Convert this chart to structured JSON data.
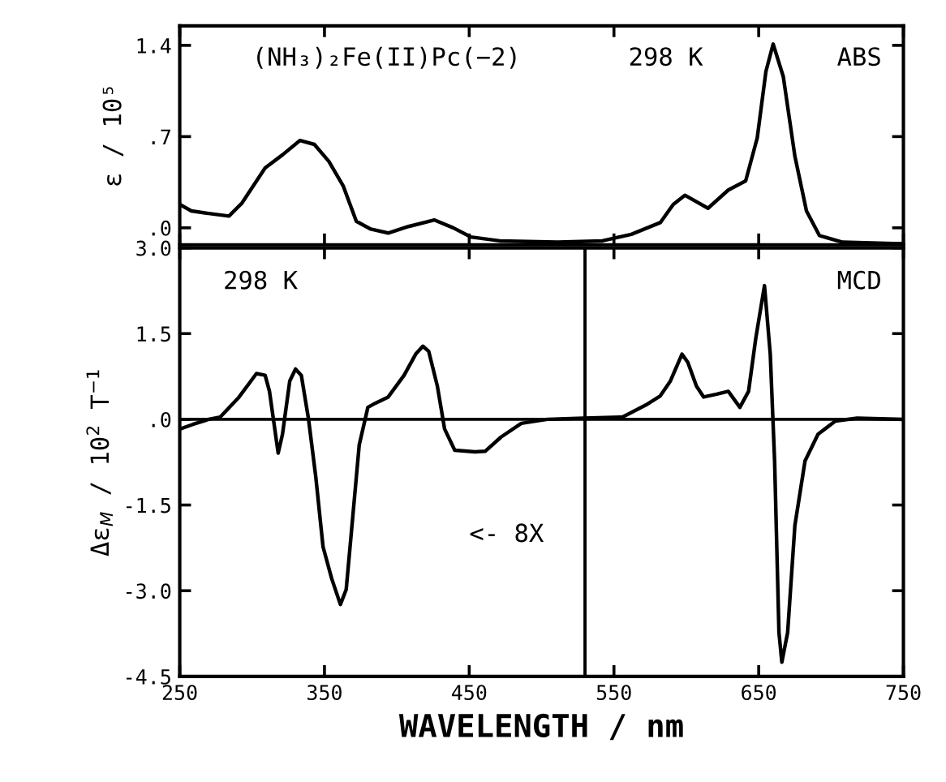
{
  "chart_data": [
    {
      "type": "line",
      "ylabel": "ε / 10⁵",
      "annotations": [
        "(NH₃)₂Fe(II)Pc(−2)",
        "298 K",
        "ABS"
      ],
      "xlim": [
        250,
        750
      ],
      "xticks": [
        250,
        350,
        450,
        550,
        650,
        750
      ],
      "ylim": [
        -0.13,
        1.55
      ],
      "yticks": [
        {
          "value": 0,
          "label": ".0"
        },
        {
          "value": 0.7,
          "label": ".7"
        },
        1.4
      ],
      "tick_labels": "y",
      "grid": false,
      "series": [
        {
          "color": "#000000",
          "x": [
            250,
            258,
            270,
            284,
            293,
            309,
            321,
            333,
            343,
            353,
            363,
            372,
            382,
            394,
            408,
            426,
            439,
            451,
            471,
            511,
            542,
            562,
            582,
            591,
            599,
            615,
            629,
            641,
            649,
            655,
            660,
            667,
            675,
            683,
            692,
            708,
            743,
            750
          ],
          "values": [
            0.18,
            0.13,
            0.11,
            0.09,
            0.19,
            0.46,
            0.56,
            0.67,
            0.64,
            0.51,
            0.32,
            0.05,
            -0.01,
            -0.04,
            0.01,
            0.06,
            0,
            -0.07,
            -0.1,
            -0.11,
            -0.1,
            -0.05,
            0.04,
            0.18,
            0.25,
            0.15,
            0.29,
            0.36,
            0.69,
            1.2,
            1.41,
            1.16,
            0.55,
            0.13,
            -0.06,
            -0.11,
            -0.12,
            -0.12
          ]
        }
      ]
    },
    {
      "type": "line",
      "xlabel": "WAVELENGTH / nm",
      "ylabel": "Δε$_{M}$ / 10$^{2}$ T$^{−1}$",
      "annotations": [
        "298 K",
        "MCD",
        "<- 8X"
      ],
      "xlim": [
        250,
        750
      ],
      "xticks": [
        250,
        350,
        450,
        550,
        650,
        750
      ],
      "ylim": [
        -4.5,
        3.0
      ],
      "yticks": [
        {
          "value": 3.0,
          "label": "3.0"
        },
        1.5,
        {
          "value": 0,
          "label": ".0"
        },
        -1.5,
        {
          "value": -3.0,
          "label": "-3.0"
        },
        -4.5
      ],
      "grid": false,
      "ref_lines": [
        {
          "axis": "y",
          "value": 0,
          "color": "#000000"
        },
        {
          "axis": "x",
          "value": 530,
          "color": "#000000"
        }
      ],
      "series": [
        {
          "color": "#000000",
          "x": [
            250,
            259,
            270,
            278,
            291,
            303,
            309,
            312,
            318,
            321,
            326,
            330,
            334,
            339,
            344,
            349,
            355,
            361,
            365,
            369,
            374,
            380,
            385,
            394,
            405,
            413,
            418,
            422,
            428,
            433,
            440,
            454,
            461,
            472,
            486,
            504,
            529,
            556,
            572,
            582,
            589,
            597,
            601,
            607,
            612,
            621,
            629,
            637,
            643,
            648,
            654,
            658,
            661,
            664,
            666,
            670,
            675,
            682,
            691,
            703,
            718,
            750
          ],
          "values": [
            -0.17,
            -0.09,
            0,
            0.04,
            0.39,
            0.8,
            0.77,
            0.49,
            -0.59,
            -0.26,
            0.67,
            0.88,
            0.77,
            0,
            -1.01,
            -2.23,
            -2.79,
            -3.24,
            -2.98,
            -1.86,
            -0.45,
            0.21,
            0.28,
            0.39,
            0.77,
            1.14,
            1.28,
            1.19,
            0.58,
            -0.17,
            -0.54,
            -0.57,
            -0.56,
            -0.31,
            -0.07,
            0,
            0.02,
            0.04,
            0.25,
            0.41,
            0.67,
            1.14,
            1.0,
            0.58,
            0.39,
            0.44,
            0.49,
            0.21,
            0.49,
            1.42,
            2.34,
            1.14,
            -0.73,
            -3.73,
            -4.25,
            -3.73,
            -1.86,
            -0.73,
            -0.26,
            -0.03,
            0.02,
            0
          ]
        }
      ]
    }
  ]
}
